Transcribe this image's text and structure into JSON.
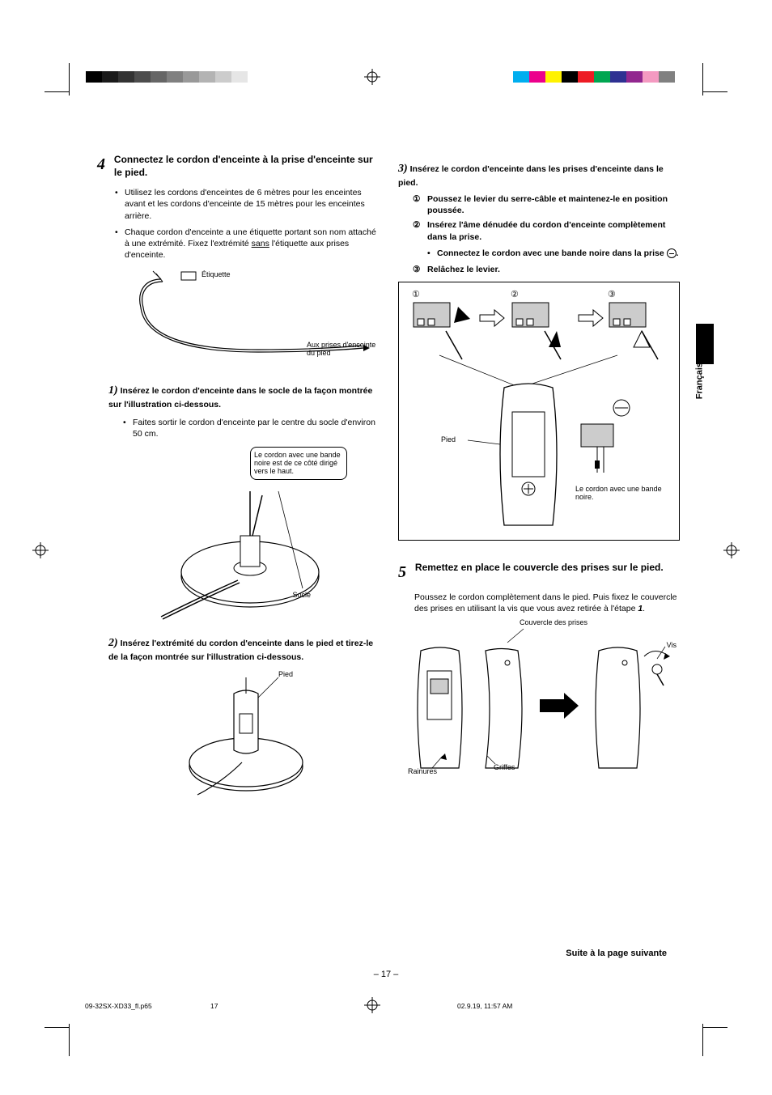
{
  "print_marks": {
    "gray_swatches": [
      "#000000",
      "#1a1a1a",
      "#333333",
      "#4d4d4d",
      "#666666",
      "#808080",
      "#999999",
      "#b3b3b3",
      "#cccccc",
      "#e6e6e6"
    ],
    "color_swatches": [
      "#00aeef",
      "#ec008c",
      "#fff200",
      "#000000",
      "#ed1c24",
      "#00a651",
      "#2e3192",
      "#92278f",
      "#f49ac1",
      "#808080"
    ]
  },
  "language_tab": "Français",
  "left_column": {
    "step4": {
      "number": "4",
      "title": "Connectez le cordon d'enceinte à la prise d'enceinte sur le pied.",
      "bullets": [
        "Utilisez les cordons d'enceintes de 6 mètres pour les enceintes avant et les cordons d'enceinte de 15 mètres pour les enceintes arrière.",
        "Chaque cordon d'enceinte a une étiquette portant son nom attaché à une extrémité. Fixez l'extrémité sans l'étiquette aux prises d'enceinte."
      ],
      "fig1_labels": {
        "etiquette": "Étiquette",
        "aux_prises": "Aux prises d'enceinte du pied"
      },
      "sub1": {
        "number": "1)",
        "text": "Insérez le cordon d'enceinte dans le socle de la façon montrée sur l'illustration ci-dessous.",
        "bullet": "Faites sortir le cordon d'enceinte par le centre du socle d'environ 50 cm.",
        "fig_labels": {
          "callout": "Le cordon avec une bande noire est de ce côté dirigé vers le haut.",
          "socle": "Socle"
        }
      },
      "sub2": {
        "number": "2)",
        "text": "Insérez l'extrémité du cordon d'enceinte dans le pied et tirez-le de la façon montrée sur l'illustration ci-dessous.",
        "fig_labels": {
          "pied": "Pied"
        }
      }
    }
  },
  "right_column": {
    "sub3": {
      "number": "3)",
      "text": "Insérez le cordon d'enceinte dans les prises d'enceinte dans le pied.",
      "steps": {
        "s1": "Poussez le levier du serre-câble et maintenez-le en position poussée.",
        "s2": "Insérez l'âme dénudée du cordon d'enceinte complètement dans la prise.",
        "s2_sub": "Connectez le cordon avec une bande noire dans la prise",
        "s3": "Relâchez le levier."
      },
      "fig_labels": {
        "seq1": "①",
        "seq2": "②",
        "seq3": "③",
        "pied": "Pied",
        "cordon": "Le cordon avec une bande noire."
      }
    },
    "step5": {
      "number": "5",
      "title": "Remettez en place le couvercle des prises sur le pied.",
      "body_prefix": "Poussez le cordon complètement dans le pied. Puis fixez le couvercle des prises en utilisant la vis que vous avez retirée à l'étape ",
      "body_step_ref": "1",
      "fig_labels": {
        "couvercle": "Couvercle des prises",
        "rainures": "Rainures",
        "griffes": "Griffes",
        "vis": "Vis"
      }
    }
  },
  "continued_text": "Suite à la page suivante",
  "page_number": "– 17 –",
  "footer": {
    "filename": "09-32SX-XD33_fl.p65",
    "page": "17",
    "timestamp": "02.9.19, 11:57 AM"
  }
}
